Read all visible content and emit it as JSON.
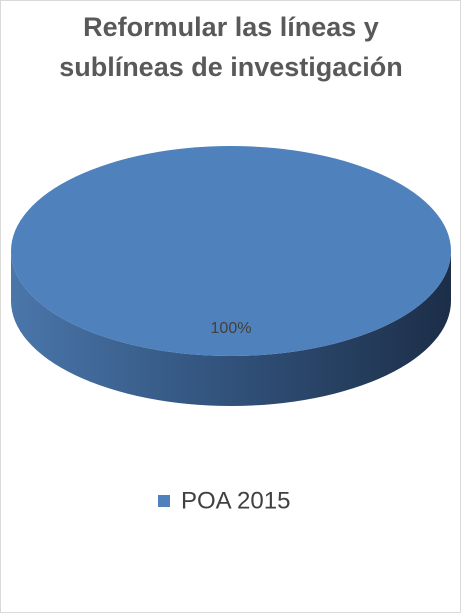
{
  "chart_data": {
    "type": "pie3d",
    "title": "Reformular las líneas y sublíneas de investigación",
    "categories": [
      "POA 2015"
    ],
    "values": [
      100
    ],
    "value_labels": [
      "100%"
    ],
    "color": "#4f81bd"
  }
}
